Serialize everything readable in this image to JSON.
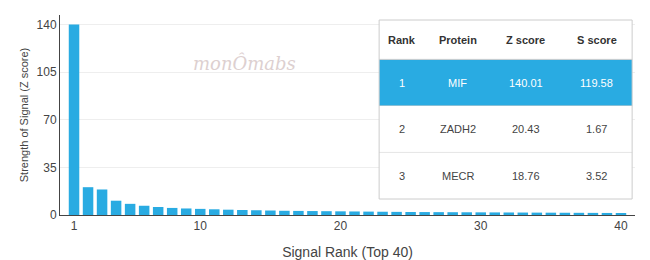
{
  "chart_data": {
    "type": "bar",
    "x": [
      1,
      2,
      3,
      4,
      5,
      6,
      7,
      8,
      9,
      10,
      11,
      12,
      13,
      14,
      15,
      16,
      17,
      18,
      19,
      20,
      21,
      22,
      23,
      24,
      25,
      26,
      27,
      28,
      29,
      30,
      31,
      32,
      33,
      34,
      35,
      36,
      37,
      38,
      39,
      40
    ],
    "values": [
      140.01,
      20.43,
      18.76,
      10.5,
      8.2,
      6.8,
      5.9,
      5.2,
      4.8,
      4.5,
      4.2,
      3.9,
      3.7,
      3.5,
      3.3,
      3.1,
      3.0,
      2.9,
      2.8,
      2.7,
      2.6,
      2.5,
      2.4,
      2.3,
      2.2,
      2.15,
      2.1,
      2.05,
      2.0,
      1.95,
      1.9,
      1.85,
      1.8,
      1.75,
      1.7,
      1.65,
      1.6,
      1.55,
      1.5,
      1.45
    ],
    "color": "#29ABE2",
    "xlabel": "Signal Rank (Top 40)",
    "ylabel": "Strength of Signal (Z score)",
    "xlim": [
      0,
      41
    ],
    "xticks": [
      1,
      10,
      20,
      30,
      40
    ],
    "ylim": [
      0,
      147
    ],
    "yticks": [
      0,
      35,
      70,
      105,
      140
    ],
    "grid": true,
    "annotations": [
      {
        "text": "monÔmabs",
        "color": "#ddd0d0"
      }
    ],
    "table": {
      "headers": [
        "Rank",
        "Protein",
        "Z score",
        "S score"
      ],
      "rows": [
        [
          "1",
          "MIF",
          "140.01",
          "119.58"
        ],
        [
          "2",
          "ZADH2",
          "20.43",
          "1.67"
        ],
        [
          "3",
          "MECR",
          "18.76",
          "3.52"
        ]
      ],
      "highlight_row": 0,
      "highlight_color": "#29ABE2",
      "highlight_text_color": "#ffffff"
    }
  }
}
